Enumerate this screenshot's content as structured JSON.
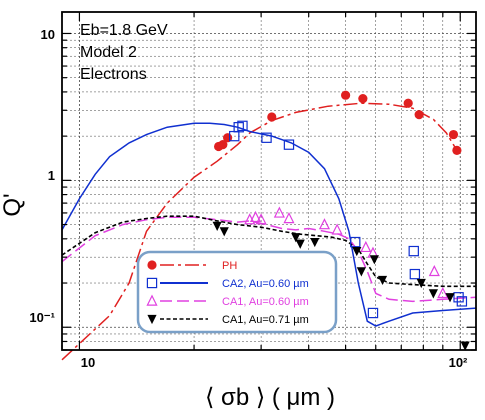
{
  "chart_data": {
    "type": "line",
    "x_scale": "log",
    "y_scale": "log",
    "xlim": [
      9,
      110
    ],
    "ylim": [
      0.07,
      14
    ],
    "grid": true,
    "xlabel": "⟨ σb ⟩ ( μm )",
    "ylabel": "Q'",
    "x_tick_labels": [
      "10",
      "10²"
    ],
    "y_tick_labels": [
      "10⁻¹",
      "1",
      "10"
    ],
    "annotations": [
      "Eb=1.8 GeV",
      "Model 2",
      "Electrons"
    ],
    "legend_position": "bottom-center",
    "series": [
      {
        "name": "PH",
        "color": "#e02020",
        "marker": "filled-circle",
        "line_style": "dash-dot",
        "points": [
          [
            23.2,
            1.7
          ],
          [
            23.8,
            1.75
          ],
          [
            24.5,
            1.95
          ],
          [
            32.0,
            2.7
          ],
          [
            50.0,
            3.8
          ],
          [
            55.5,
            3.6
          ],
          [
            73.0,
            3.35
          ],
          [
            78.0,
            2.8
          ],
          [
            96.0,
            2.05
          ],
          [
            98.0,
            1.6
          ]
        ],
        "curve": [
          [
            9.0,
            0.06
          ],
          [
            12.0,
            0.12
          ],
          [
            13.5,
            0.2
          ],
          [
            15.0,
            0.45
          ],
          [
            17.0,
            0.7
          ],
          [
            20.0,
            1.05
          ],
          [
            23.0,
            1.35
          ],
          [
            26.0,
            1.75
          ],
          [
            28.0,
            2.1
          ],
          [
            32.0,
            2.55
          ],
          [
            37.0,
            2.9
          ],
          [
            45.0,
            3.2
          ],
          [
            55.0,
            3.35
          ],
          [
            65.0,
            3.3
          ],
          [
            75.0,
            3.1
          ],
          [
            85.0,
            2.6
          ],
          [
            92.0,
            2.1
          ],
          [
            98.0,
            1.6
          ],
          [
            100.0,
            1.55
          ]
        ]
      },
      {
        "name": "CA2, Au=0.60 µm",
        "color": "#1030d0",
        "marker": "open-square",
        "line_style": "solid",
        "points": [
          [
            25.5,
            2.0
          ],
          [
            26.2,
            2.3
          ],
          [
            26.8,
            2.35
          ],
          [
            31.0,
            1.95
          ],
          [
            35.5,
            1.75
          ],
          [
            53.0,
            0.38
          ],
          [
            59.0,
            0.125
          ],
          [
            75.5,
            0.33
          ],
          [
            76.0,
            0.23
          ],
          [
            99.0,
            0.16
          ],
          [
            101.0,
            0.15
          ]
        ],
        "curve": [
          [
            9.0,
            0.46
          ],
          [
            10.0,
            0.75
          ],
          [
            11.0,
            1.1
          ],
          [
            12.0,
            1.45
          ],
          [
            13.5,
            1.8
          ],
          [
            15.0,
            2.05
          ],
          [
            17.0,
            2.3
          ],
          [
            20.0,
            2.45
          ],
          [
            22.0,
            2.45
          ],
          [
            24.0,
            2.4
          ],
          [
            26.0,
            2.3
          ],
          [
            28.0,
            2.15
          ],
          [
            32.0,
            2.0
          ],
          [
            36.0,
            1.8
          ],
          [
            40.0,
            1.55
          ],
          [
            44.0,
            1.2
          ],
          [
            48.0,
            0.75
          ],
          [
            51.0,
            0.45
          ],
          [
            54.0,
            0.2
          ],
          [
            57.0,
            0.11
          ],
          [
            60.0,
            0.102
          ],
          [
            65.0,
            0.11
          ],
          [
            75.0,
            0.125
          ],
          [
            90.0,
            0.13
          ],
          [
            110.0,
            0.135
          ]
        ]
      },
      {
        "name": "CA1, Au=0.60 µm",
        "color": "#e040e0",
        "marker": "open-triangle-up",
        "line_style": "long-dash",
        "points": [
          [
            28.0,
            0.54
          ],
          [
            29.0,
            0.56
          ],
          [
            30.0,
            0.54
          ],
          [
            33.5,
            0.6
          ],
          [
            35.5,
            0.55
          ],
          [
            44.0,
            0.5
          ],
          [
            47.5,
            0.46
          ],
          [
            56.5,
            0.35
          ],
          [
            59.0,
            0.32
          ],
          [
            85.5,
            0.24
          ],
          [
            90.0,
            0.17
          ]
        ],
        "curve": [
          [
            9.0,
            0.28
          ],
          [
            11.0,
            0.42
          ],
          [
            13.0,
            0.5
          ],
          [
            15.0,
            0.54
          ],
          [
            17.0,
            0.56
          ],
          [
            20.0,
            0.56
          ],
          [
            23.0,
            0.54
          ],
          [
            26.0,
            0.52
          ],
          [
            28.0,
            0.53
          ],
          [
            31.0,
            0.5
          ],
          [
            34.0,
            0.47
          ],
          [
            37.0,
            0.46
          ],
          [
            40.0,
            0.47
          ],
          [
            44.0,
            0.45
          ],
          [
            48.0,
            0.43
          ],
          [
            51.0,
            0.4
          ],
          [
            54.0,
            0.33
          ],
          [
            57.0,
            0.24
          ],
          [
            60.0,
            0.17
          ],
          [
            65.0,
            0.155
          ],
          [
            75.0,
            0.15
          ],
          [
            90.0,
            0.155
          ],
          [
            110.0,
            0.16
          ]
        ]
      },
      {
        "name": "CA1, Au=0.71 µm",
        "color": "#000000",
        "marker": "filled-triangle-down",
        "line_style": "short-dash",
        "points": [
          [
            23.0,
            0.49
          ],
          [
            24.0,
            0.45
          ],
          [
            37.0,
            0.41
          ],
          [
            38.0,
            0.37
          ],
          [
            41.5,
            0.38
          ],
          [
            53.5,
            0.33
          ],
          [
            55.0,
            0.24
          ],
          [
            59.5,
            0.29
          ],
          [
            62.5,
            0.21
          ],
          [
            79.0,
            0.2
          ],
          [
            85.0,
            0.17
          ],
          [
            94.0,
            0.16
          ],
          [
            103.0,
            0.075
          ]
        ],
        "curve": [
          [
            9.0,
            0.31
          ],
          [
            11.0,
            0.44
          ],
          [
            13.0,
            0.52
          ],
          [
            15.0,
            0.55
          ],
          [
            17.0,
            0.57
          ],
          [
            20.0,
            0.57
          ],
          [
            23.0,
            0.53
          ],
          [
            26.0,
            0.5
          ],
          [
            30.0,
            0.48
          ],
          [
            34.0,
            0.45
          ],
          [
            38.0,
            0.43
          ],
          [
            42.0,
            0.42
          ],
          [
            46.0,
            0.41
          ],
          [
            50.0,
            0.39
          ],
          [
            54.0,
            0.34
          ],
          [
            57.0,
            0.27
          ],
          [
            60.0,
            0.22
          ],
          [
            65.0,
            0.2
          ],
          [
            75.0,
            0.195
          ],
          [
            90.0,
            0.19
          ],
          [
            110.0,
            0.19
          ]
        ]
      }
    ]
  }
}
